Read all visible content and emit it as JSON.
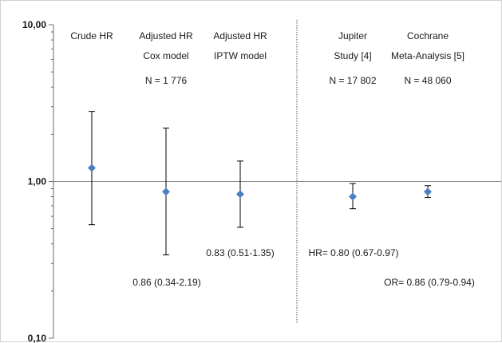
{
  "chart_data": {
    "type": "scatter",
    "scale": "log",
    "ylim": [
      0.1,
      10
    ],
    "y_ticks": [
      {
        "value": 10,
        "label": "10,00"
      },
      {
        "value": 1,
        "label": "1,00"
      },
      {
        "value": 0.1,
        "label": "0,10"
      }
    ],
    "reference_line": 1,
    "marker_color": "#4a7fc1",
    "series": [
      {
        "label_lines": [
          "Crude HR"
        ],
        "n_label": "",
        "estimate": 1.22,
        "lower": 0.53,
        "upper": 2.8,
        "annotation": ""
      },
      {
        "label_lines": [
          "Adjusted HR",
          "Cox model"
        ],
        "n_label": "N = 1 776",
        "estimate": 0.86,
        "lower": 0.34,
        "upper": 2.19,
        "annotation": "0.86 (0.34-2.19)"
      },
      {
        "label_lines": [
          "Adjusted HR",
          "IPTW model"
        ],
        "n_label": "",
        "estimate": 0.83,
        "lower": 0.51,
        "upper": 1.35,
        "annotation": "0.83 (0.51-1.35)"
      },
      {
        "label_lines": [
          "Jupiter",
          "Study [4]"
        ],
        "n_label": "N = 17 802",
        "estimate": 0.8,
        "lower": 0.67,
        "upper": 0.97,
        "annotation": "HR= 0.80 (0.67-0.97)"
      },
      {
        "label_lines": [
          "Cochrane",
          "Meta-Analysis [5]"
        ],
        "n_label": "N = 48 060",
        "estimate": 0.86,
        "lower": 0.79,
        "upper": 0.94,
        "annotation": "OR= 0.86 (0.79-0.94)"
      }
    ]
  }
}
